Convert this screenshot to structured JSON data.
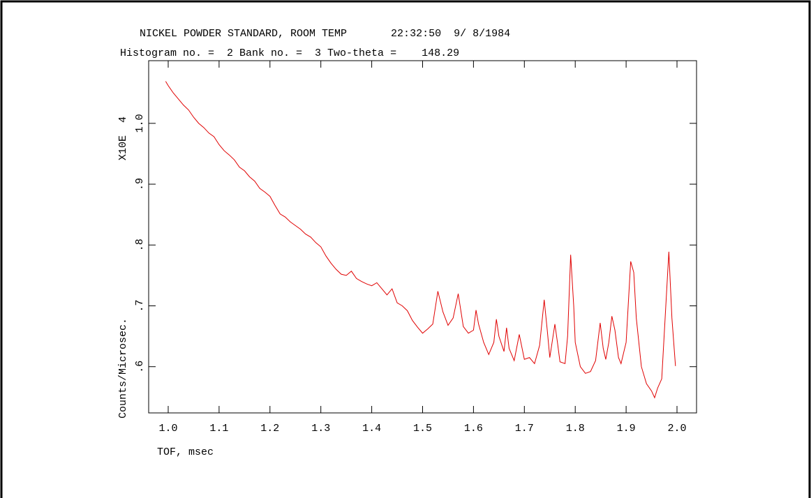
{
  "chart_data": {
    "type": "line",
    "title": "NICKEL POWDER STANDARD, ROOM TEMP       22:32:50  9/ 8/1984",
    "subtitle": "Histogram no. =  2 Bank no. =  3 Two-theta =    148.29",
    "x_label": "TOF, msec",
    "y_label": "Counts/Microsec.",
    "y_scale_label": "X10E  4",
    "x": [
      0.995,
      1.0,
      1.01,
      1.02,
      1.03,
      1.04,
      1.05,
      1.06,
      1.07,
      1.08,
      1.09,
      1.1,
      1.11,
      1.12,
      1.13,
      1.14,
      1.15,
      1.16,
      1.17,
      1.18,
      1.19,
      1.2,
      1.21,
      1.22,
      1.23,
      1.24,
      1.25,
      1.26,
      1.27,
      1.28,
      1.29,
      1.3,
      1.31,
      1.32,
      1.33,
      1.34,
      1.35,
      1.36,
      1.37,
      1.38,
      1.39,
      1.4,
      1.41,
      1.42,
      1.43,
      1.44,
      1.45,
      1.46,
      1.47,
      1.48,
      1.49,
      1.5,
      1.51,
      1.52,
      1.53,
      1.54,
      1.55,
      1.56,
      1.57,
      1.58,
      1.59,
      1.6,
      1.605,
      1.61,
      1.62,
      1.63,
      1.64,
      1.645,
      1.65,
      1.66,
      1.665,
      1.67,
      1.68,
      1.69,
      1.7,
      1.71,
      1.72,
      1.73,
      1.739,
      1.745,
      1.75,
      1.76,
      1.765,
      1.77,
      1.78,
      1.785,
      1.791,
      1.797,
      1.8,
      1.81,
      1.82,
      1.83,
      1.84,
      1.849,
      1.855,
      1.86,
      1.866,
      1.872,
      1.878,
      1.885,
      1.89,
      1.9,
      1.909,
      1.915,
      1.92,
      1.93,
      1.94,
      1.95,
      1.956,
      1.962,
      1.97,
      1.978,
      1.984,
      1.99,
      1.997
    ],
    "series": [
      {
        "color": "#e00000",
        "values": [
          1.069,
          1.062,
          1.05,
          1.04,
          1.03,
          1.022,
          1.01,
          1.0,
          0.993,
          0.984,
          0.978,
          0.965,
          0.955,
          0.948,
          0.94,
          0.928,
          0.922,
          0.912,
          0.905,
          0.893,
          0.887,
          0.88,
          0.865,
          0.851,
          0.846,
          0.838,
          0.832,
          0.826,
          0.818,
          0.813,
          0.804,
          0.797,
          0.782,
          0.77,
          0.76,
          0.752,
          0.75,
          0.757,
          0.745,
          0.74,
          0.736,
          0.733,
          0.738,
          0.728,
          0.718,
          0.728,
          0.705,
          0.7,
          0.692,
          0.676,
          0.665,
          0.655,
          0.662,
          0.67,
          0.724,
          0.69,
          0.668,
          0.68,
          0.72,
          0.666,
          0.655,
          0.66,
          0.693,
          0.67,
          0.64,
          0.62,
          0.64,
          0.678,
          0.65,
          0.625,
          0.664,
          0.63,
          0.61,
          0.653,
          0.612,
          0.615,
          0.605,
          0.635,
          0.71,
          0.66,
          0.615,
          0.67,
          0.64,
          0.608,
          0.605,
          0.65,
          0.784,
          0.7,
          0.64,
          0.6,
          0.589,
          0.592,
          0.61,
          0.672,
          0.63,
          0.612,
          0.64,
          0.683,
          0.66,
          0.615,
          0.605,
          0.64,
          0.773,
          0.755,
          0.68,
          0.6,
          0.572,
          0.56,
          0.549,
          0.565,
          0.58,
          0.7,
          0.789,
          0.68,
          0.601
        ]
      }
    ],
    "xlim": [
      0.9616,
      2.0384
    ],
    "ylim": [
      0.524,
      1.103
    ],
    "xticks": [
      {
        "value": 1.0,
        "label": "1.0"
      },
      1.1,
      1.2,
      1.3,
      1.4,
      1.5,
      1.6,
      1.7,
      1.8,
      1.9,
      {
        "value": 2.0,
        "label": "2.0"
      }
    ],
    "yticks": [
      {
        "value": 0.6,
        "label": ".6"
      },
      {
        "value": 0.7,
        "label": ".7"
      },
      {
        "value": 0.8,
        "label": ".8"
      },
      {
        "value": 0.9,
        "label": ".9"
      },
      {
        "value": 1.0,
        "label": "1.0"
      }
    ]
  }
}
